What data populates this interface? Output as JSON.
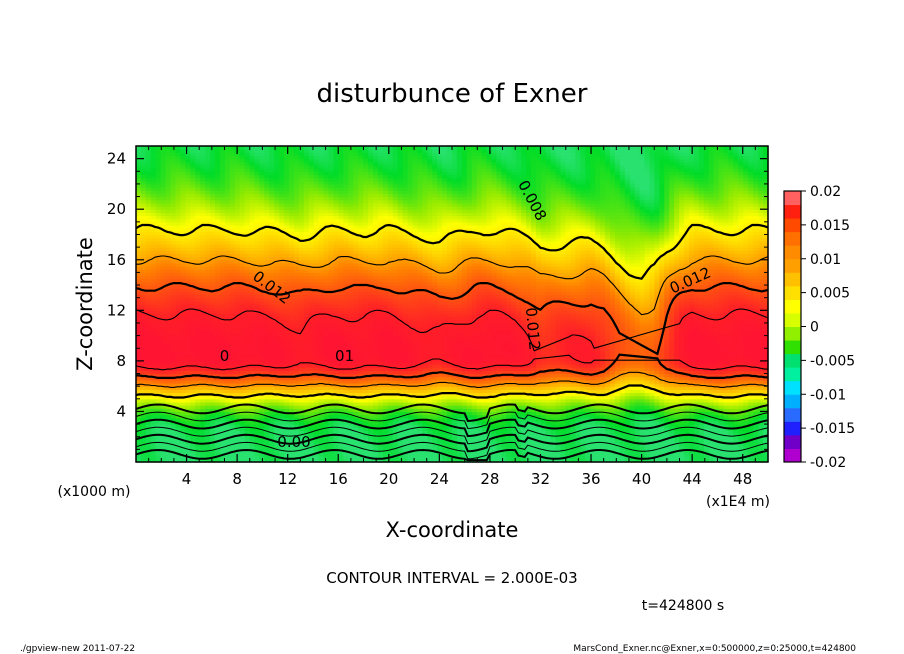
{
  "chart_data": {
    "type": "heatmap",
    "title": "disturbunce of Exner",
    "xlabel": "X-coordinate",
    "ylabel": "Z-coordinate",
    "x_unit": "(x1E4 m)",
    "y_unit": "(x1000 m)",
    "xlim": [
      0,
      50
    ],
    "ylim": [
      0,
      25
    ],
    "x_ticks": [
      4,
      8,
      12,
      16,
      20,
      24,
      28,
      32,
      36,
      40,
      44,
      48
    ],
    "y_ticks": [
      4,
      8,
      12,
      16,
      20,
      24
    ],
    "contour_interval_text": "CONTOUR INTERVAL = 2.000E-03",
    "time_text": "t=424800 s",
    "contour_labels": [
      {
        "text": "0.012",
        "x": 10.5,
        "y": 13.5,
        "rot": 38
      },
      {
        "text": "0.008",
        "x": 31.0,
        "y": 20.5,
        "rot": 62
      },
      {
        "text": "0.012",
        "x": 31.0,
        "y": 10.5,
        "rot": 85
      },
      {
        "text": "0.012",
        "x": 44.0,
        "y": 14.0,
        "rot": -24
      },
      {
        "text": "0.00",
        "x": 12.5,
        "y": 1.2,
        "rot": 0
      },
      {
        "text": "0",
        "x": 7.0,
        "y": 8.0,
        "rot": 0
      },
      {
        "text": "01",
        "x": 16.5,
        "y": 8.0,
        "rot": 0
      }
    ],
    "colorbar": {
      "ticks": [
        "0.02",
        "0.015",
        "0.01",
        "0.005",
        "0",
        "-0.005",
        "-0.01",
        "-0.015",
        "-0.02"
      ],
      "colors": [
        "#b000d0",
        "#7000c8",
        "#2020ff",
        "#2a6bff",
        "#00b0ff",
        "#00e0ff",
        "#00f0a0",
        "#00e070",
        "#30e000",
        "#90f000",
        "#d8ff00",
        "#ffff00",
        "#ffe000",
        "#ffc000",
        "#ffa000",
        "#ff8c00",
        "#ff7000",
        "#ff4a00",
        "#ff2010",
        "#ff6060"
      ]
    },
    "profile": {
      "x": [
        0,
        4,
        8,
        11,
        12,
        13,
        15,
        16,
        18,
        20,
        22,
        24,
        25,
        26,
        27,
        28,
        29,
        30,
        31,
        32,
        34,
        36,
        37,
        38,
        39,
        40,
        41,
        42,
        43,
        44,
        46,
        48,
        50
      ],
      "s": [
        1.0,
        1.0,
        1.0,
        0.97,
        0.95,
        0.93,
        0.98,
        1.0,
        0.98,
        1.0,
        0.95,
        0.9,
        0.92,
        0.96,
        1.0,
        1.0,
        0.98,
        0.95,
        0.9,
        0.82,
        0.85,
        0.88,
        0.82,
        0.7,
        0.6,
        0.55,
        0.6,
        0.78,
        0.92,
        1.0,
        1.0,
        1.0,
        1.0
      ]
    }
  },
  "footer": {
    "left": "./gpview-new   2011-07-22",
    "right": "MarsCond_Exner.nc@Exner,x=0:500000,z=0:25000,t=424800"
  }
}
